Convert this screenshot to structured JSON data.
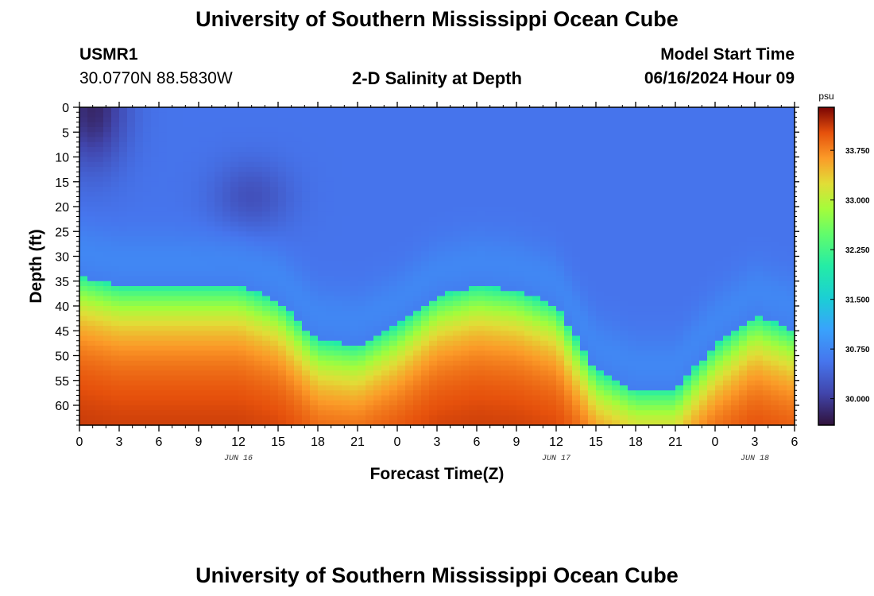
{
  "header": {
    "title": "University of Southern Mississippi Ocean Cube",
    "station_id": "USMR1",
    "coords": "30.0770N  88.5830W",
    "plot_title": "2-D Salinity at Depth",
    "model_label": "Model Start Time",
    "model_time": "06/16/2024 Hour 09"
  },
  "footer": {
    "title": "University of Southern Mississippi Ocean Cube"
  },
  "chart_data": {
    "type": "heatmap",
    "title": "2-D Salinity at Depth",
    "xlabel": "Forecast Time(Z)",
    "ylabel": "Depth (ft)",
    "x_ticks": [
      "0",
      "3",
      "6",
      "9",
      "12",
      "15",
      "18",
      "21",
      "0",
      "3",
      "6",
      "9",
      "12",
      "15",
      "18",
      "21",
      "0",
      "3",
      "6"
    ],
    "x_range_hours": [
      0,
      54
    ],
    "date_labels": [
      {
        "label": "JUN 16",
        "hour": 12
      },
      {
        "label": "JUN 17",
        "hour": 36
      },
      {
        "label": "JUN 18",
        "hour": 51
      }
    ],
    "y_ticks": [
      "0",
      "5",
      "10",
      "15",
      "20",
      "25",
      "30",
      "35",
      "40",
      "45",
      "50",
      "55",
      "60"
    ],
    "y_range_ft": [
      0,
      64
    ],
    "colorbar": {
      "unit": "psu",
      "range": [
        29.6,
        34.4
      ],
      "ticks": [
        "33.750",
        "33.000",
        "32.250",
        "31.500",
        "30.750",
        "30.000"
      ],
      "tick_values": [
        33.75,
        33.0,
        32.25,
        31.5,
        30.75,
        30.0
      ]
    },
    "halocline_depth_ft": [
      [
        0,
        34
      ],
      [
        3,
        36
      ],
      [
        6,
        36
      ],
      [
        9,
        36
      ],
      [
        12,
        36
      ],
      [
        15,
        39
      ],
      [
        18,
        47
      ],
      [
        21,
        48
      ],
      [
        24,
        44
      ],
      [
        27,
        38
      ],
      [
        30,
        36
      ],
      [
        33,
        37
      ],
      [
        36,
        40
      ],
      [
        39,
        53
      ],
      [
        42,
        57
      ],
      [
        45,
        57
      ],
      [
        48,
        48
      ],
      [
        51,
        42
      ],
      [
        54,
        45
      ]
    ]
  }
}
